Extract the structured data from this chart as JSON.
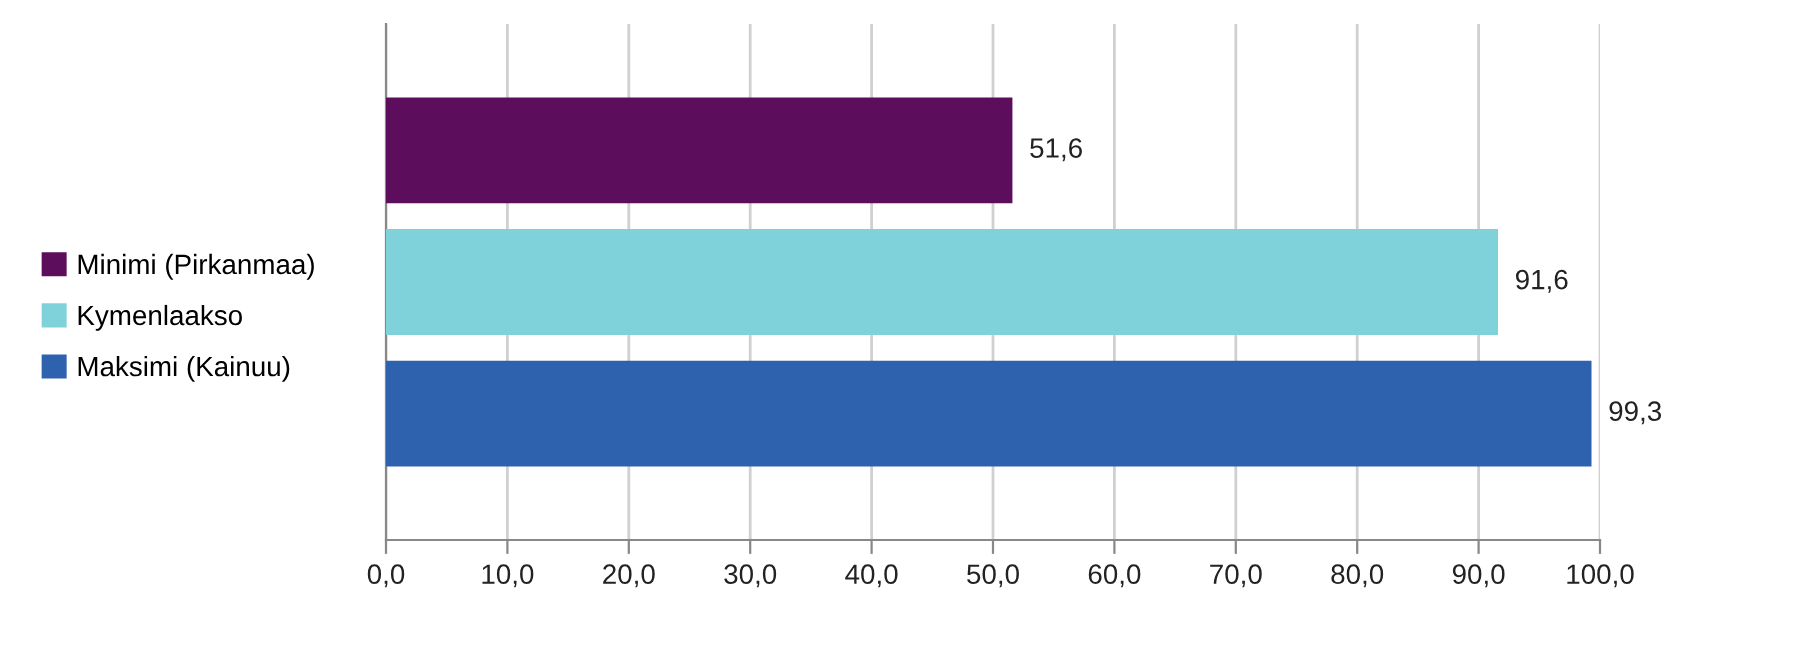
{
  "chart_data": {
    "type": "bar",
    "orientation": "horizontal",
    "categories": [
      null
    ],
    "series": [
      {
        "name": "Minimi (Pirkanmaa)",
        "color": "#5c0d5c",
        "values": [
          51.6
        ],
        "value_labels": [
          "51,6"
        ]
      },
      {
        "name": "Kymenlaakso",
        "color": "#7fd2d9",
        "values": [
          91.6
        ],
        "value_labels": [
          "91,6"
        ]
      },
      {
        "name": "Maksimi (Kainuu)",
        "color": "#2e62ae",
        "values": [
          99.3
        ],
        "value_labels": [
          "99,3"
        ]
      }
    ],
    "xlim": [
      0,
      100
    ],
    "xticks": [
      {
        "value": 0,
        "label": "0,0"
      },
      {
        "value": 10,
        "label": "10,0"
      },
      {
        "value": 20,
        "label": "20,0"
      },
      {
        "value": 30,
        "label": "30,0"
      },
      {
        "value": 40,
        "label": "40,0"
      },
      {
        "value": 50,
        "label": "50,0"
      },
      {
        "value": 60,
        "label": "60,0"
      },
      {
        "value": 70,
        "label": "70,0"
      },
      {
        "value": 80,
        "label": "80,0"
      },
      {
        "value": 90,
        "label": "90,0"
      },
      {
        "value": 100,
        "label": "100,0"
      }
    ],
    "grid": "x",
    "legend": "left"
  }
}
